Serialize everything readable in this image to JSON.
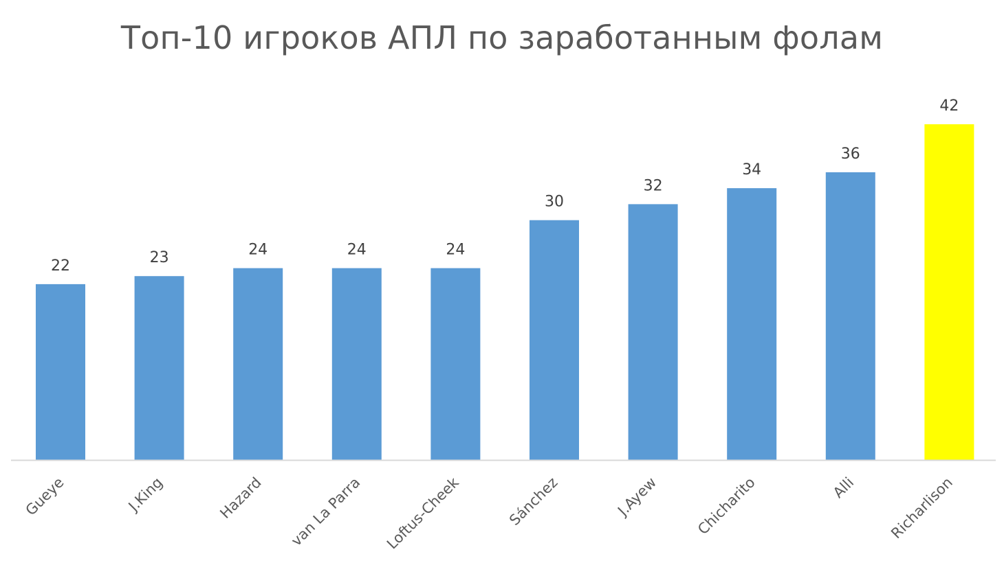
{
  "chart_data": {
    "type": "bar",
    "title": "Топ-10 игроков АПЛ по заработанным фолам",
    "xlabel": "",
    "ylabel": "",
    "ylim": [
      0,
      42
    ],
    "grid": false,
    "legend": "none",
    "categories": [
      "Gueye",
      "J.King",
      "Hazard",
      "van La Parra",
      "Loftus-Cheek",
      "Sánchez",
      "J.Ayew",
      "Chicharito",
      "Alli",
      "Richarlison"
    ],
    "values": [
      22,
      23,
      24,
      24,
      24,
      30,
      32,
      34,
      36,
      42
    ],
    "data_labels": [
      "22",
      "23",
      "24",
      "24",
      "24",
      "30",
      "32",
      "34",
      "36",
      "42"
    ],
    "highlight_index": 9,
    "colors": {
      "bar": "#5b9bd5",
      "highlight": "#ffff00",
      "axis": "#d9d9d9",
      "title": "#595959",
      "label": "#404040",
      "tick": "#595959"
    }
  }
}
